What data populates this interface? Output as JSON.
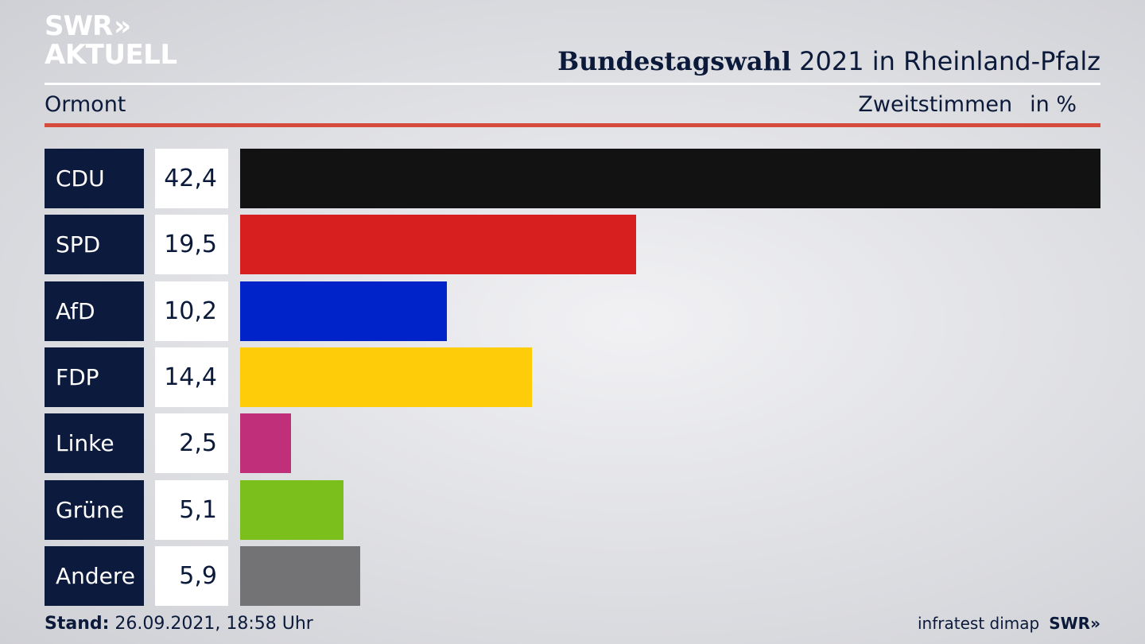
{
  "logo": {
    "line1": "SWR",
    "line2": "AKTUELL",
    "chevrons": "»"
  },
  "header": {
    "title_bold": "Bundestagswahl",
    "title_rest": " 2021 in Rheinland-Pfalz",
    "place": "Ormont",
    "measure": "Zweitstimmen",
    "unit": "in %"
  },
  "chart_data": {
    "type": "bar",
    "orientation": "horizontal",
    "categories": [
      "CDU",
      "SPD",
      "AfD",
      "FDP",
      "Linke",
      "Grüne",
      "Andere"
    ],
    "values": [
      42.4,
      19.5,
      10.2,
      14.4,
      2.5,
      5.1,
      5.9
    ],
    "value_labels": [
      "42,4",
      "19,5",
      "10,2",
      "14,4",
      "2,5",
      "5,1",
      "5,9"
    ],
    "colors": [
      "#121212",
      "#d71f1f",
      "#0022c9",
      "#ffcc0a",
      "#c0307a",
      "#7abf1c",
      "#737376"
    ],
    "xlim": [
      0,
      42.4
    ],
    "grid": false
  },
  "footer": {
    "stand_label": "Stand:",
    "stand_value": " 26.09.2021, 18:58 Uhr",
    "source": "infratest dimap",
    "brand": "SWR»"
  }
}
